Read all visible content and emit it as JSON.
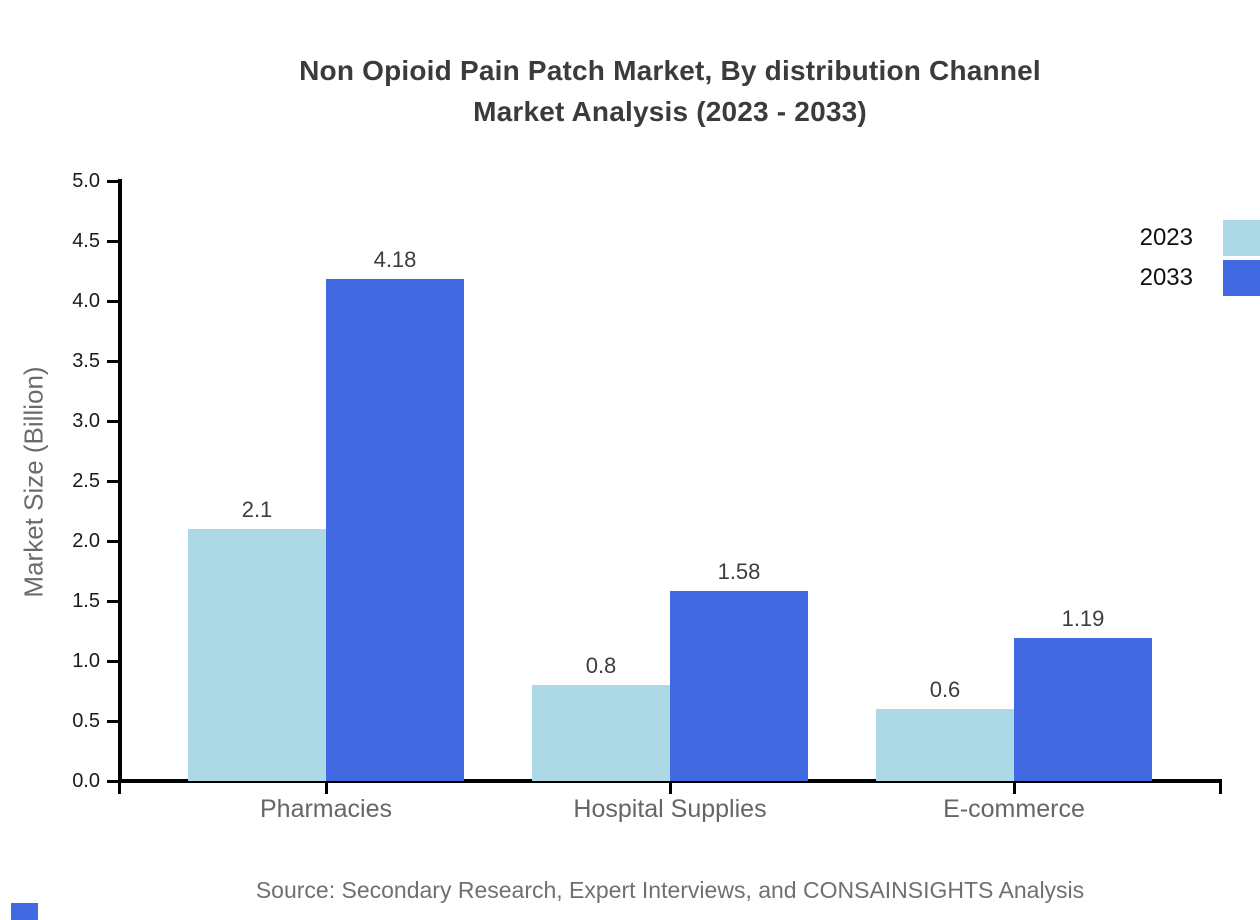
{
  "title": {
    "line1": "Non Opioid Pain Patch Market, By distribution Channel",
    "line2": "Market Analysis (2023 - 2033)"
  },
  "source": "Source: Secondary Research, Expert Interviews, and CONSAINSIGHTS Analysis",
  "colors": {
    "series_2023": "#add8e6",
    "series_2033": "#4169e1",
    "axis": "#000000",
    "title_text": "#3b3b3b",
    "category_text": "#666666",
    "source_text": "#707070"
  },
  "chart_data": {
    "type": "bar",
    "title": "Non Opioid Pain Patch Market, By distribution Channel Market Analysis (2023 - 2033)",
    "categories": [
      "Pharmacies",
      "Hospital Supplies",
      "E-commerce"
    ],
    "series": [
      {
        "name": "2023",
        "color": "#add8e6",
        "values": [
          2.1,
          0.8,
          0.6
        ],
        "labels": [
          "2.1",
          "0.8",
          "0.6"
        ]
      },
      {
        "name": "2033",
        "color": "#4169e1",
        "values": [
          4.18,
          1.58,
          1.19
        ],
        "labels": [
          "4.18",
          "1.58",
          "1.19"
        ]
      }
    ],
    "xlabel": "",
    "ylabel": "Market Size (Billion)",
    "ylim": [
      0,
      5
    ],
    "ytick_step": 0.5,
    "ytick_labels": [
      "0.0",
      "0.5",
      "1.0",
      "1.5",
      "2.0",
      "2.5",
      "3.0",
      "3.5",
      "4.0",
      "4.5",
      "5.0"
    ],
    "grid": false,
    "legend_position": "top-right",
    "legend": [
      "2023",
      "2033"
    ]
  }
}
